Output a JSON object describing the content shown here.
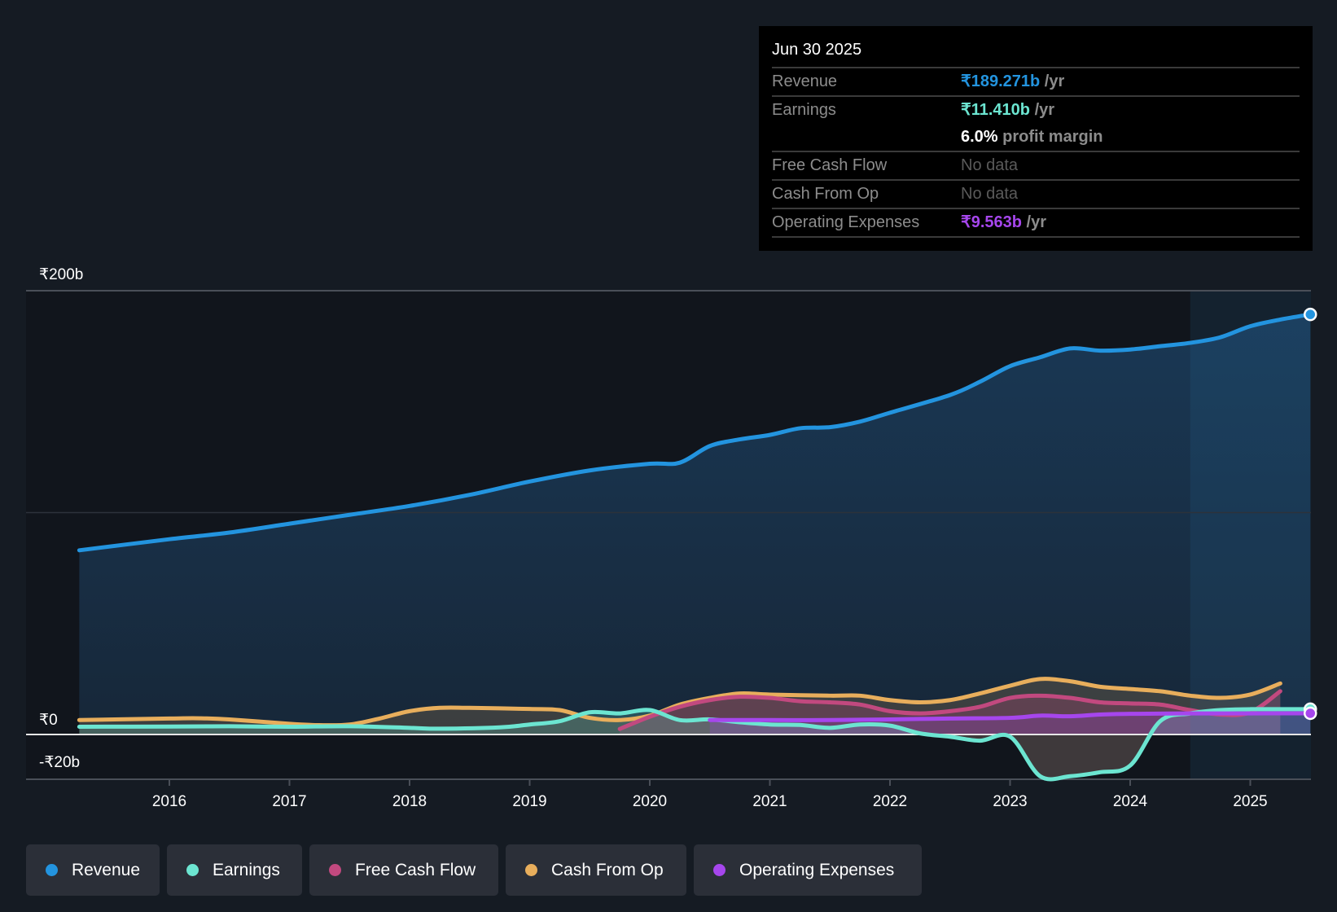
{
  "tooltip": {
    "date": "Jun 30 2025",
    "rows": [
      {
        "label": "Revenue",
        "value": "₹189.271b",
        "unit": " /yr",
        "color": "#2394df"
      },
      {
        "label": "Earnings",
        "value": "₹11.410b",
        "unit": " /yr",
        "color": "#6ce5d1"
      },
      {
        "label": "",
        "value": "6.0%",
        "unit": " profit margin",
        "color": "#ffffff"
      },
      {
        "label": "Free Cash Flow",
        "value": "No data",
        "unit": "",
        "color": "#5a5a5a"
      },
      {
        "label": "Cash From Op",
        "value": "No data",
        "unit": "",
        "color": "#5a5a5a"
      },
      {
        "label": "Operating Expenses",
        "value": "₹9.563b",
        "unit": " /yr",
        "color": "#a646ed"
      }
    ]
  },
  "legend": [
    {
      "label": "Revenue",
      "color": "#2394df"
    },
    {
      "label": "Earnings",
      "color": "#6ce5d1"
    },
    {
      "label": "Free Cash Flow",
      "color": "#c2497f"
    },
    {
      "label": "Cash From Op",
      "color": "#e8ae5c"
    },
    {
      "label": "Operating Expenses",
      "color": "#a646ed"
    }
  ],
  "chart_data": {
    "type": "line",
    "title": "",
    "xlabel": "",
    "ylabel": "",
    "currency": "₹",
    "unit": "b",
    "ylim": [
      -20,
      200
    ],
    "xlim": [
      2015.25,
      2025.5
    ],
    "y_ticks": [
      {
        "value": 200,
        "label": "₹200b"
      },
      {
        "value": 0,
        "label": "₹0"
      },
      {
        "value": -20,
        "label": "-₹20b"
      }
    ],
    "x_ticks": [
      {
        "value": 2016,
        "label": "2016"
      },
      {
        "value": 2017,
        "label": "2017"
      },
      {
        "value": 2018,
        "label": "2018"
      },
      {
        "value": 2019,
        "label": "2019"
      },
      {
        "value": 2020,
        "label": "2020"
      },
      {
        "value": 2021,
        "label": "2021"
      },
      {
        "value": 2022,
        "label": "2022"
      },
      {
        "value": 2023,
        "label": "2023"
      },
      {
        "value": 2024,
        "label": "2024"
      },
      {
        "value": 2025,
        "label": "2025"
      }
    ],
    "grid": true,
    "highlight_from": 2024.5,
    "legend_position": "bottom",
    "series": [
      {
        "name": "Revenue",
        "color": "#2394df",
        "fill": true,
        "end_marker": true,
        "points": [
          [
            2015.25,
            83
          ],
          [
            2016,
            88
          ],
          [
            2016.5,
            91
          ],
          [
            2017,
            95
          ],
          [
            2017.5,
            99
          ],
          [
            2018,
            103
          ],
          [
            2018.5,
            108
          ],
          [
            2019,
            114
          ],
          [
            2019.5,
            119
          ],
          [
            2020,
            122
          ],
          [
            2020.25,
            122.5
          ],
          [
            2020.5,
            130
          ],
          [
            2020.75,
            133
          ],
          [
            2021,
            135
          ],
          [
            2021.25,
            138
          ],
          [
            2021.5,
            138.5
          ],
          [
            2021.75,
            141
          ],
          [
            2022,
            145
          ],
          [
            2022.5,
            153
          ],
          [
            2022.75,
            159
          ],
          [
            2023,
            166
          ],
          [
            2023.25,
            170
          ],
          [
            2023.5,
            174
          ],
          [
            2023.75,
            173
          ],
          [
            2024,
            173.5
          ],
          [
            2024.25,
            175
          ],
          [
            2024.5,
            176.5
          ],
          [
            2024.75,
            179
          ],
          [
            2025,
            184
          ],
          [
            2025.25,
            187
          ],
          [
            2025.5,
            189.3
          ]
        ]
      },
      {
        "name": "Earnings",
        "color": "#6ce5d1",
        "fill": true,
        "end_marker": true,
        "points": [
          [
            2015.25,
            3.5
          ],
          [
            2016,
            3.6
          ],
          [
            2016.5,
            3.7
          ],
          [
            2017,
            3.5
          ],
          [
            2017.5,
            3.7
          ],
          [
            2018,
            3
          ],
          [
            2018.25,
            2.6
          ],
          [
            2018.75,
            3.2
          ],
          [
            2019,
            4.5
          ],
          [
            2019.25,
            6
          ],
          [
            2019.5,
            10
          ],
          [
            2019.75,
            9.5
          ],
          [
            2020,
            11
          ],
          [
            2020.25,
            6.5
          ],
          [
            2020.5,
            6.8
          ],
          [
            2020.75,
            5.5
          ],
          [
            2021,
            4.5
          ],
          [
            2021.25,
            4.3
          ],
          [
            2021.5,
            3
          ],
          [
            2021.75,
            4.5
          ],
          [
            2022,
            4
          ],
          [
            2022.25,
            0.5
          ],
          [
            2022.5,
            -1
          ],
          [
            2022.75,
            -2.8
          ],
          [
            2023,
            -1
          ],
          [
            2023.25,
            -18.8
          ],
          [
            2023.5,
            -18.8
          ],
          [
            2023.75,
            -17
          ],
          [
            2024,
            -14
          ],
          [
            2024.25,
            6
          ],
          [
            2024.5,
            9.5
          ],
          [
            2024.75,
            11
          ],
          [
            2025,
            11.4
          ],
          [
            2025.5,
            11.4
          ]
        ]
      },
      {
        "name": "Free Cash Flow",
        "color": "#c2497f",
        "fill": true,
        "end_marker": false,
        "points": [
          [
            2019.75,
            2.5
          ],
          [
            2020,
            8
          ],
          [
            2020.25,
            12.5
          ],
          [
            2020.5,
            15.5
          ],
          [
            2020.75,
            17
          ],
          [
            2021,
            16.5
          ],
          [
            2021.25,
            15
          ],
          [
            2021.5,
            14.5
          ],
          [
            2021.75,
            13.5
          ],
          [
            2022,
            10.5
          ],
          [
            2022.25,
            9.5
          ],
          [
            2022.5,
            10.5
          ],
          [
            2022.75,
            12.5
          ],
          [
            2023,
            16.5
          ],
          [
            2023.25,
            17.5
          ],
          [
            2023.5,
            16.5
          ],
          [
            2023.75,
            14.5
          ],
          [
            2024,
            14
          ],
          [
            2024.25,
            13.5
          ],
          [
            2024.5,
            11
          ],
          [
            2024.75,
            9
          ],
          [
            2025,
            10
          ],
          [
            2025.25,
            19.5
          ]
        ]
      },
      {
        "name": "Cash From Op",
        "color": "#e8ae5c",
        "fill": true,
        "end_marker": false,
        "points": [
          [
            2015.25,
            6.5
          ],
          [
            2016,
            7.2
          ],
          [
            2016.25,
            7.3
          ],
          [
            2016.5,
            6.8
          ],
          [
            2017,
            4.8
          ],
          [
            2017.25,
            4.2
          ],
          [
            2017.5,
            4.5
          ],
          [
            2017.75,
            7.2
          ],
          [
            2018,
            10.5
          ],
          [
            2018.25,
            12
          ],
          [
            2018.5,
            12
          ],
          [
            2019,
            11.5
          ],
          [
            2019.25,
            11
          ],
          [
            2019.5,
            7.5
          ],
          [
            2019.75,
            6.5
          ],
          [
            2020,
            8.5
          ],
          [
            2020.25,
            13.5
          ],
          [
            2020.5,
            16.5
          ],
          [
            2020.75,
            18.5
          ],
          [
            2021,
            18
          ],
          [
            2021.5,
            17.5
          ],
          [
            2021.75,
            17.5
          ],
          [
            2022,
            15.5
          ],
          [
            2022.25,
            14.5
          ],
          [
            2022.5,
            15.5
          ],
          [
            2022.75,
            18.5
          ],
          [
            2023,
            22
          ],
          [
            2023.25,
            25
          ],
          [
            2023.5,
            24
          ],
          [
            2023.75,
            21.5
          ],
          [
            2024,
            20.5
          ],
          [
            2024.25,
            19.5
          ],
          [
            2024.5,
            17.5
          ],
          [
            2024.75,
            16.5
          ],
          [
            2025,
            18
          ],
          [
            2025.25,
            23
          ]
        ]
      },
      {
        "name": "Operating Expenses",
        "color": "#a646ed",
        "fill": true,
        "end_marker": true,
        "points": [
          [
            2020.5,
            6.5
          ],
          [
            2021,
            6.5
          ],
          [
            2021.5,
            6.5
          ],
          [
            2022,
            6.8
          ],
          [
            2022.5,
            7.2
          ],
          [
            2023,
            7.5
          ],
          [
            2023.25,
            8.5
          ],
          [
            2023.5,
            8.2
          ],
          [
            2023.75,
            9
          ],
          [
            2024,
            9.3
          ],
          [
            2024.5,
            9.5
          ],
          [
            2025,
            9.5
          ],
          [
            2025.5,
            9.563
          ]
        ]
      }
    ]
  }
}
